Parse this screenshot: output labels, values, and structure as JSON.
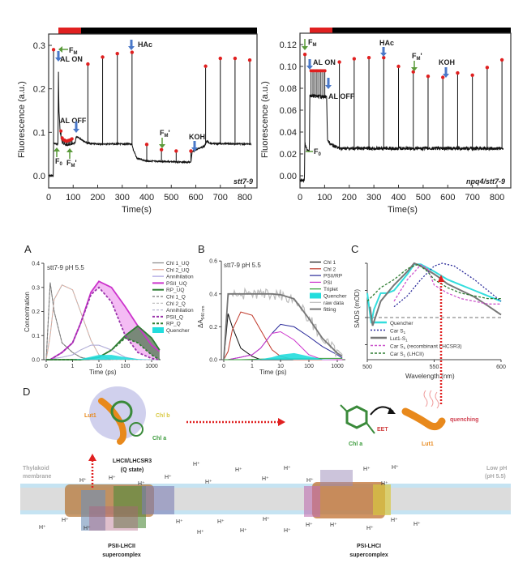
{
  "panel_labels": {
    "A": "A",
    "B": "B",
    "C": "C",
    "D": "D"
  },
  "chart_data": [
    {
      "type": "line",
      "id": "stt7-9",
      "title": "stt7-9",
      "xlabel": "Time(s)",
      "ylabel": "Fluorescence (a.u.)",
      "xlim": [
        0,
        830
      ],
      "ylim": [
        -0.03,
        0.325
      ],
      "xticks": [
        "0",
        "100",
        "200",
        "300",
        "400",
        "500",
        "600",
        "700",
        "800"
      ],
      "yticks": [
        "0.0",
        "0.1",
        "0.2",
        "0.3"
      ],
      "light_bar": {
        "red": [
          40,
          130
        ],
        "black": [
          130,
          830
        ]
      },
      "baseline": [
        [
          0,
          0
        ],
        [
          19,
          0
        ],
        [
          20,
          0.075
        ],
        [
          38,
          0.072
        ],
        [
          40,
          0.24
        ],
        [
          42,
          0.15
        ],
        [
          47,
          0.1
        ],
        [
          55,
          0.077
        ],
        [
          70,
          0.07
        ],
        [
          90,
          0.072
        ],
        [
          108,
          0.075
        ],
        [
          112,
          0.09
        ],
        [
          130,
          0.085
        ],
        [
          158,
          0.075
        ],
        [
          200,
          0.073
        ],
        [
          340,
          0.073
        ],
        [
          345,
          0.06
        ],
        [
          360,
          0.04
        ],
        [
          400,
          0.034
        ],
        [
          580,
          0.031
        ],
        [
          585,
          0.055
        ],
        [
          600,
          0.06
        ],
        [
          635,
          0.068
        ],
        [
          645,
          0.08
        ],
        [
          660,
          0.074
        ],
        [
          830,
          0.073
        ]
      ],
      "peaks": [
        [
          20,
          0.29
        ],
        [
          160,
          0.257
        ],
        [
          220,
          0.273
        ],
        [
          280,
          0.281
        ],
        [
          340,
          0.284
        ],
        [
          400,
          0.072
        ],
        [
          460,
          0.06
        ],
        [
          520,
          0.057
        ],
        [
          580,
          0.057
        ],
        [
          640,
          0.252
        ],
        [
          700,
          0.27
        ],
        [
          760,
          0.27
        ],
        [
          820,
          0.266
        ]
      ],
      "al_points": [
        [
          50,
          0.103
        ],
        [
          55,
          0.087
        ],
        [
          60,
          0.083
        ],
        [
          65,
          0.082
        ],
        [
          70,
          0.08
        ],
        [
          75,
          0.08
        ],
        [
          80,
          0.081
        ],
        [
          85,
          0.082
        ],
        [
          90,
          0.083
        ],
        [
          95,
          0.085
        ]
      ],
      "annotations": {
        "fm": "F",
        "fm_sub": "M",
        "al_on": "AL ON",
        "al_off": "AL OFF",
        "f0": "F",
        "f0_sub": "0",
        "fmp": "F",
        "fmp_sub": "M",
        "fmp_prime": "'",
        "fmp2": "F",
        "fmp2_sub": "M",
        "fmp2_prime": "'",
        "hac": "HAc",
        "koh": "KOH"
      }
    },
    {
      "type": "line",
      "id": "npq4/stt7-9",
      "title": "npq4/stt7-9",
      "xlabel": "Time(s)",
      "ylabel": "Fluorescence (a.u.)",
      "xlim": [
        0,
        830
      ],
      "ylim": [
        -0.01,
        0.13
      ],
      "xticks": [
        "0",
        "100",
        "200",
        "300",
        "400",
        "500",
        "600",
        "700",
        "800"
      ],
      "yticks": [
        "0.00",
        "0.02",
        "0.04",
        "0.06",
        "0.08",
        "0.10",
        "0.12"
      ],
      "light_bar": {
        "red": [
          40,
          130
        ],
        "black": [
          130,
          830
        ]
      },
      "baseline": [
        [
          0,
          -0.004
        ],
        [
          18,
          -0.004
        ],
        [
          20,
          0.03
        ],
        [
          25,
          0.025
        ],
        [
          38,
          0.023
        ],
        [
          40,
          0.073
        ],
        [
          108,
          0.072
        ],
        [
          112,
          0.032
        ],
        [
          130,
          0.028
        ],
        [
          160,
          0.025
        ],
        [
          830,
          0.025
        ]
      ],
      "peaks": [
        [
          20,
          0.111
        ],
        [
          160,
          0.104
        ],
        [
          220,
          0.107
        ],
        [
          280,
          0.108
        ],
        [
          340,
          0.108
        ],
        [
          400,
          0.1
        ],
        [
          460,
          0.095
        ],
        [
          520,
          0.091
        ],
        [
          580,
          0.09
        ],
        [
          640,
          0.094
        ],
        [
          700,
          0.092
        ],
        [
          760,
          0.099
        ],
        [
          820,
          0.106
        ]
      ],
      "al_points": [
        [
          45,
          0.096
        ],
        [
          53,
          0.096
        ],
        [
          61,
          0.096
        ],
        [
          69,
          0.096
        ],
        [
          77,
          0.096
        ],
        [
          85,
          0.096
        ],
        [
          93,
          0.096
        ],
        [
          101,
          0.096
        ]
      ],
      "annotations": {
        "fm": "F",
        "fm_sub": "M",
        "al_on": "AL ON",
        "al_off": "AL OFF",
        "f0": "F",
        "f0_sub": "0",
        "fmp": "F",
        "fmp_sub": "M",
        "fmp_prime": "'",
        "hac": "HAc",
        "koh": "KOH"
      }
    },
    {
      "type": "line",
      "id": "A",
      "title": "stt7-9 pH 5.5",
      "xlabel": "Time (ps)",
      "ylabel": "Concentration",
      "xscale": "lin-log",
      "ylim": [
        0,
        0.4
      ],
      "xticks": [
        "0",
        "1",
        "10",
        "100",
        "1000"
      ],
      "yticks": [
        "0.0",
        "0.1",
        "0.2",
        "0.3",
        "0.4"
      ],
      "t": [
        0,
        0.15,
        0.3,
        0.6,
        1,
        2,
        5,
        10,
        30,
        100,
        300,
        1000,
        2000
      ],
      "series": [
        {
          "name": "Chl 1_UQ",
          "color": "#888888",
          "style": "solid",
          "values": [
            0,
            0.32,
            0.2,
            0.07,
            0.03,
            0.01,
            0,
            0,
            0,
            0,
            0,
            0,
            0
          ]
        },
        {
          "name": "Chl 2_UQ",
          "color": "#e0a090",
          "style": "solid",
          "values": [
            0,
            0.1,
            0.25,
            0.31,
            0.29,
            0.2,
            0.08,
            0.02,
            0,
            0,
            0,
            0,
            0
          ]
        },
        {
          "name": "Annihilation",
          "color": "#a8a0e0",
          "style": "solid",
          "values": [
            0,
            0,
            0.005,
            0.01,
            0.02,
            0.04,
            0.06,
            0.06,
            0.04,
            0.01,
            0,
            0,
            0
          ]
        },
        {
          "name": "PSII_UQ",
          "color": "#cc33cc",
          "style": "thick",
          "values": [
            0,
            0,
            0.01,
            0.03,
            0.07,
            0.15,
            0.28,
            0.325,
            0.3,
            0.22,
            0.14,
            0.06,
            0.035
          ]
        },
        {
          "name": "RP_UQ",
          "color": "#2e7d32",
          "style": "thick",
          "values": [
            0,
            0,
            0,
            0,
            0,
            0,
            0.005,
            0.01,
            0.04,
            0.1,
            0.14,
            0.09,
            0.04
          ]
        },
        {
          "name": "Chl 1_Q",
          "color": "#777777",
          "style": "dash",
          "values": [
            0,
            0.32,
            0.2,
            0.07,
            0.03,
            0.01,
            0,
            0,
            0,
            0,
            0,
            0,
            0
          ]
        },
        {
          "name": "Chl 2_Q",
          "color": "#bbbbbb",
          "style": "dash",
          "values": [
            0,
            0.1,
            0.25,
            0.31,
            0.29,
            0.2,
            0.08,
            0.02,
            0,
            0,
            0,
            0,
            0
          ]
        },
        {
          "name": "Annihilation",
          "color": "#b8b8d0",
          "style": "dash",
          "values": [
            0,
            0,
            0.005,
            0.01,
            0.02,
            0.04,
            0.06,
            0.06,
            0.04,
            0.01,
            0,
            0,
            0
          ]
        },
        {
          "name": "PSII_Q",
          "color": "#9933aa",
          "style": "dashthick",
          "values": [
            0,
            0,
            0.01,
            0.03,
            0.07,
            0.15,
            0.27,
            0.3,
            0.24,
            0.1,
            0.03,
            0.005,
            0
          ]
        },
        {
          "name": "RP_Q",
          "color": "#2e7d32",
          "style": "dashthick",
          "values": [
            0,
            0,
            0,
            0,
            0,
            0,
            0.005,
            0.01,
            0.04,
            0.09,
            0.07,
            0.02,
            0
          ]
        },
        {
          "name": "Quencher",
          "color": "#22dddd",
          "style": "fill",
          "values": [
            0,
            0,
            0,
            0,
            0,
            0.003,
            0.012,
            0.02,
            0.02,
            0.01,
            0.003,
            0,
            0
          ]
        }
      ]
    },
    {
      "type": "line",
      "id": "B",
      "title": "stt7-9 pH 5.5",
      "xlabel": "Time (ps)",
      "ylabel": "ΔA",
      "ylabel_sub": "540 nm",
      "xscale": "lin-log",
      "ylim": [
        0,
        0.6
      ],
      "xticks": [
        "0",
        "1",
        "10",
        "100",
        "1000"
      ],
      "yticks": [
        "0.0",
        "0.2",
        "0.4",
        "0.6"
      ],
      "t": [
        0,
        0.15,
        0.3,
        0.6,
        1,
        2,
        5,
        10,
        30,
        100,
        300,
        1000,
        1500
      ],
      "series": [
        {
          "name": "Chl 1",
          "color": "#111111",
          "style": "solid",
          "values": [
            0,
            0.28,
            0.2,
            0.07,
            0.02,
            0,
            0,
            0,
            0,
            0,
            0,
            0,
            0
          ]
        },
        {
          "name": "Chl 2",
          "color": "#c0392b",
          "style": "solid",
          "values": [
            0,
            0.05,
            0.18,
            0.29,
            0.27,
            0.18,
            0.06,
            0.02,
            0,
            0,
            0,
            0,
            0
          ]
        },
        {
          "name": "PSII/RP",
          "color": "#2a2a9a",
          "style": "solid",
          "values": [
            0,
            0,
            0.005,
            0.015,
            0.03,
            0.07,
            0.16,
            0.215,
            0.2,
            0.14,
            0.08,
            0.03,
            0.01
          ]
        },
        {
          "name": "PSI",
          "color": "#cc33cc",
          "style": "solid",
          "values": [
            0,
            0,
            0.005,
            0.015,
            0.03,
            0.07,
            0.16,
            0.17,
            0.12,
            0.03,
            0,
            0,
            0
          ]
        },
        {
          "name": "Triplet",
          "color": "#2e9d32",
          "style": "solid",
          "values": [
            0,
            0,
            0,
            0,
            0.002,
            0.004,
            0.005,
            0.006,
            0.007,
            0.008,
            0.008,
            0.008,
            0.008
          ]
        },
        {
          "name": "Quencher",
          "color": "#22dddd",
          "style": "fill",
          "values": [
            0,
            0,
            0,
            0,
            0,
            0.003,
            0.015,
            0.03,
            0.04,
            0.02,
            0.003,
            0,
            0
          ]
        },
        {
          "name": "raw data",
          "color": "#bbbbbb",
          "style": "raw",
          "values": [
            0,
            0.4,
            0.4,
            0.4,
            0.4,
            0.4,
            0.4,
            0.395,
            0.37,
            0.25,
            0.13,
            0.04,
            0.02
          ]
        },
        {
          "name": "fitting",
          "color": "#777777",
          "style": "thick",
          "values": [
            0,
            0.4,
            0.4,
            0.4,
            0.4,
            0.4,
            0.4,
            0.395,
            0.37,
            0.25,
            0.13,
            0.04,
            0.02
          ]
        }
      ]
    },
    {
      "type": "line",
      "id": "C",
      "xlabel": "Wavelength (nm)",
      "ylabel": "SADS (mOD)",
      "xlim": [
        500,
        600
      ],
      "xticks": [
        "500",
        "550",
        "600"
      ],
      "series": [
        {
          "name": "Quencher",
          "color": "#33dddd",
          "style": "thick",
          "x": [
            500,
            503,
            505,
            510,
            515,
            520,
            530,
            535,
            540,
            550,
            560,
            570,
            580,
            590,
            600
          ],
          "values": [
            0.45,
            -0.1,
            0.15,
            0.45,
            0.45,
            0.5,
            0.8,
            0.98,
            0.98,
            0.85,
            0.7,
            0.6,
            0.5,
            0.4,
            0.3
          ]
        },
        {
          "name": "Car S1",
          "color": "#2a2a9a",
          "style": "dot",
          "x": [
            520,
            530,
            540,
            550,
            556,
            565,
            580,
            600
          ],
          "values": [
            0.2,
            0.4,
            0.7,
            0.95,
            1.0,
            0.95,
            0.7,
            0.3
          ]
        },
        {
          "name": "Lut1-S1",
          "color": "#777777",
          "style": "thick",
          "x": [
            502,
            504,
            510,
            520,
            530,
            535,
            540,
            550,
            553,
            560,
            570,
            580,
            590,
            600
          ],
          "values": [
            0.2,
            -0.15,
            0.3,
            0.6,
            0.85,
            1.0,
            0.95,
            0.8,
            0.75,
            0.62,
            0.5,
            0.38,
            0.22,
            0.05
          ]
        },
        {
          "name": "Car S1 (recombinant LHCSR3)",
          "color": "#cc55cc",
          "style": "dash",
          "x": [
            520,
            530,
            540,
            545,
            550,
            560,
            570,
            580,
            590,
            600
          ],
          "values": [
            0.3,
            0.7,
            0.97,
            0.9,
            0.6,
            0.45,
            0.35,
            0.3,
            0.25,
            0.25
          ]
        },
        {
          "name": "Car S1 (LHCII)",
          "color": "#2e7d32",
          "style": "dash",
          "x": [
            500,
            510,
            520,
            530,
            538,
            545,
            550,
            560,
            570,
            580,
            590,
            600
          ],
          "values": [
            0.3,
            0.55,
            0.7,
            0.9,
            0.98,
            0.85,
            0.7,
            0.55,
            0.45,
            0.4,
            0.35,
            0.35
          ]
        }
      ],
      "legend_sub": "1"
    }
  ],
  "diagram": {
    "lhc_title": "LHCII/LHCSR3",
    "lhc_state": "(Q state)",
    "lut1": "Lut1",
    "chl_b": "Chl b",
    "chl_a": "Chl a",
    "eet": "EET",
    "quenching": "quenching",
    "chl_a2": "Chl a",
    "lut1_2": "Lut1",
    "membrane_1": "Thylakoid",
    "membrane_2": "membrane",
    "lowph_1": "Low pH",
    "lowph_2": "(pH 5.5)",
    "psii_1": "PSII-LHCII",
    "psii_2": "supercomplex",
    "psi_1": "PSI-LHCI",
    "psi_2": "supercomplex",
    "proton": "H⁺"
  },
  "colors": {
    "red_marker": "#e02020",
    "arrow_blue": "#4a78c8",
    "arrow_green": "#5a9a3a",
    "lut_orange": "#e8891c",
    "membrane": "#d9d9d9",
    "membrane_edge": "#bfe0f0"
  }
}
